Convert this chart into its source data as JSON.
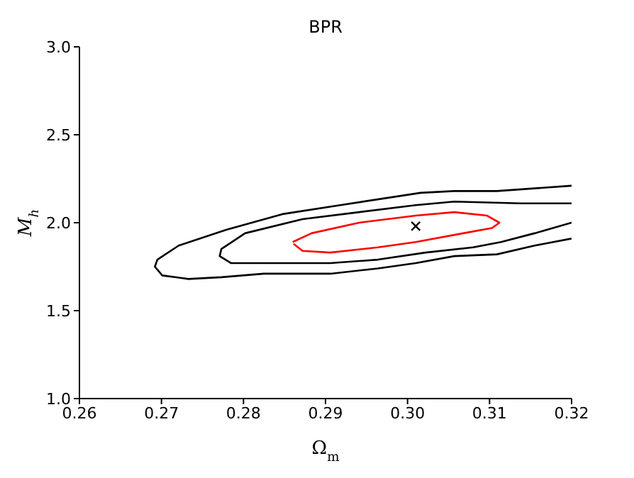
{
  "chart_data": {
    "type": "line",
    "title": "BPR",
    "xlabel": "Ω$_{m}$",
    "ylabel": "M$_{h}$",
    "xlim": [
      0.26,
      0.32
    ],
    "xticks": [
      0.26,
      0.27,
      0.28,
      0.29,
      {
        "value": 0.3,
        "label": "0.30"
      },
      0.31,
      0.32
    ],
    "ylim": [
      1.0,
      3.0
    ],
    "yticks": [
      {
        "value": 1.0,
        "label": "1.0"
      },
      1.5,
      {
        "value": 2.0,
        "label": "2.0"
      },
      2.5,
      {
        "value": 3.0,
        "label": "3.0"
      }
    ],
    "grid": false,
    "legend": false,
    "series": [
      {
        "color": "#000000",
        "x": [
          0.32,
          0.3109,
          0.3057,
          0.3016,
          0.2918,
          0.2849,
          0.2779,
          0.2721,
          0.2695,
          0.2692,
          0.2701,
          0.2733,
          0.2773,
          0.2825,
          0.2906,
          0.2964,
          0.301,
          0.3057,
          0.3109,
          0.3155,
          0.32
        ],
        "values": [
          2.21,
          2.18,
          2.18,
          2.17,
          2.1,
          2.05,
          1.96,
          1.87,
          1.79,
          1.75,
          1.7,
          1.68,
          1.69,
          1.71,
          1.71,
          1.74,
          1.77,
          1.81,
          1.82,
          1.87,
          1.91
        ]
      },
      {
        "color": "#000000",
        "x": [
          0.32,
          0.3138,
          0.3057,
          0.301,
          0.2941,
          0.2872,
          0.2802,
          0.2773,
          0.2771,
          0.2785,
          0.2837,
          0.2906,
          0.2964,
          0.3022,
          0.308,
          0.3114,
          0.3155,
          0.32
        ],
        "values": [
          2.11,
          2.11,
          2.12,
          2.1,
          2.06,
          2.02,
          1.94,
          1.85,
          1.81,
          1.77,
          1.77,
          1.77,
          1.79,
          1.83,
          1.86,
          1.89,
          1.94,
          2.0
        ]
      },
      {
        "color": "#ff0000",
        "x": [
          0.286,
          0.2883,
          0.2941,
          0.301,
          0.3057,
          0.3097,
          0.3112,
          0.3103,
          0.3068,
          0.301,
          0.2964,
          0.2906,
          0.2872,
          0.2861
        ],
        "values": [
          1.89,
          1.94,
          2.0,
          2.04,
          2.06,
          2.04,
          2.0,
          1.97,
          1.94,
          1.89,
          1.86,
          1.83,
          1.84,
          1.88
        ]
      },
      {
        "type": "scatter",
        "color": "#000000",
        "marker": "cross",
        "x": [
          0.301
        ],
        "values": [
          1.98
        ]
      }
    ]
  }
}
